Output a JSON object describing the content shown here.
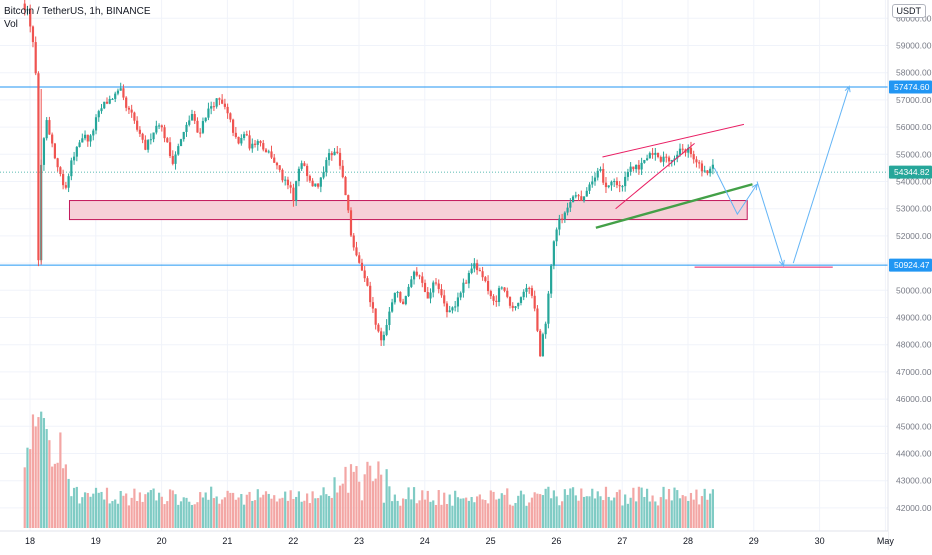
{
  "header": {
    "title": "Bitcoin / TetherUS, 1h, BINANCE",
    "volume_label": "Vol"
  },
  "currency_badge": "USDT",
  "colors": {
    "up": "#26a69a",
    "down": "#ef5350",
    "up_volume": "#7fcbc4",
    "down_volume": "#f3a6a4",
    "level_line": "#2196f3",
    "zone_fill": "#f6d0d8",
    "zone_border": "#c2185b",
    "wedge_line": "#e91e63",
    "trend_line": "#43a047",
    "arrow": "#64b5f6",
    "axis_text": "#787b86"
  },
  "chart_data": {
    "type": "candlestick",
    "title": "Bitcoin / TetherUS, 1h, BINANCE",
    "x_axis": {
      "tick_labels": [
        "18",
        "19",
        "20",
        "21",
        "22",
        "23",
        "24",
        "25",
        "26",
        "27",
        "28",
        "29",
        "30",
        "May"
      ]
    },
    "y_axis": {
      "range": [
        41800,
        60600
      ],
      "tick_values": [
        60000,
        59000,
        58000,
        57000,
        56000,
        55000,
        54000,
        53000,
        52000,
        51000,
        50000,
        49000,
        48000,
        47000,
        46000,
        45000,
        44000,
        43000,
        42000
      ],
      "tick_labels": [
        "60000.00",
        "59000.00",
        "58000.00",
        "57000.00",
        "56000.00",
        "55000.00",
        "54000.00",
        "53000.00",
        "52000.00",
        "51000.00",
        "50000.00",
        "49000.00",
        "48000.00",
        "47000.00",
        "46000.00",
        "45000.00",
        "44000.00",
        "43000.00",
        "42000.00"
      ]
    },
    "price_labels": [
      {
        "value": 57474.6,
        "text": "57474.60",
        "kind": "level"
      },
      {
        "value": 54344.82,
        "text": "54344.82",
        "kind": "last"
      },
      {
        "value": 50924.47,
        "text": "50924.47",
        "kind": "level"
      }
    ],
    "horizontal_levels": [
      57474.6,
      50924.47
    ],
    "last_price": 54344.82,
    "support_zone": {
      "from_day": 18.6,
      "to_day": 28.9,
      "low": 52600,
      "high": 53300
    },
    "price_path": [
      [
        17.9,
        60600
      ],
      [
        18.0,
        60300
      ],
      [
        18.05,
        59700
      ],
      [
        18.1,
        59000
      ],
      [
        18.14,
        57400
      ],
      [
        18.17,
        51000
      ],
      [
        18.22,
        55200
      ],
      [
        18.3,
        56300
      ],
      [
        18.4,
        55000
      ],
      [
        18.5,
        54200
      ],
      [
        18.58,
        53600
      ],
      [
        18.65,
        54600
      ],
      [
        18.75,
        55300
      ],
      [
        18.85,
        55700
      ],
      [
        18.95,
        55500
      ],
      [
        19.05,
        56300
      ],
      [
        19.15,
        56800
      ],
      [
        19.25,
        57000
      ],
      [
        19.35,
        57200
      ],
      [
        19.42,
        57300
      ],
      [
        19.5,
        56700
      ],
      [
        19.6,
        56400
      ],
      [
        19.7,
        55700
      ],
      [
        19.8,
        55200
      ],
      [
        19.9,
        55800
      ],
      [
        20.0,
        56200
      ],
      [
        20.1,
        55600
      ],
      [
        20.2,
        54700
      ],
      [
        20.3,
        55300
      ],
      [
        20.4,
        55900
      ],
      [
        20.5,
        56500
      ],
      [
        20.6,
        55700
      ],
      [
        20.7,
        56400
      ],
      [
        20.8,
        56800
      ],
      [
        20.9,
        57000
      ],
      [
        21.0,
        56700
      ],
      [
        21.1,
        56100
      ],
      [
        21.2,
        55300
      ],
      [
        21.3,
        55800
      ],
      [
        21.4,
        55200
      ],
      [
        21.5,
        55600
      ],
      [
        21.6,
        55200
      ],
      [
        21.7,
        55000
      ],
      [
        21.8,
        54500
      ],
      [
        21.9,
        54000
      ],
      [
        22.0,
        53700
      ],
      [
        22.05,
        53200
      ],
      [
        22.1,
        54300
      ],
      [
        22.2,
        54700
      ],
      [
        22.3,
        54000
      ],
      [
        22.4,
        53800
      ],
      [
        22.5,
        54400
      ],
      [
        22.6,
        55000
      ],
      [
        22.7,
        55200
      ],
      [
        22.75,
        54700
      ],
      [
        22.8,
        54000
      ],
      [
        22.85,
        53400
      ],
      [
        22.9,
        52400
      ],
      [
        22.95,
        51700
      ],
      [
        23.0,
        51400
      ],
      [
        23.1,
        50600
      ],
      [
        23.2,
        49800
      ],
      [
        23.3,
        48700
      ],
      [
        23.4,
        48000
      ],
      [
        23.5,
        49200
      ],
      [
        23.6,
        50000
      ],
      [
        23.7,
        49400
      ],
      [
        23.8,
        50200
      ],
      [
        23.9,
        50700
      ],
      [
        24.0,
        50300
      ],
      [
        24.1,
        49700
      ],
      [
        24.2,
        50400
      ],
      [
        24.3,
        49900
      ],
      [
        24.4,
        49100
      ],
      [
        24.5,
        49400
      ],
      [
        24.6,
        50100
      ],
      [
        24.7,
        50500
      ],
      [
        24.8,
        50900
      ],
      [
        24.9,
        50600
      ],
      [
        25.0,
        50000
      ],
      [
        25.1,
        49500
      ],
      [
        25.2,
        50200
      ],
      [
        25.3,
        49600
      ],
      [
        25.4,
        49200
      ],
      [
        25.5,
        49800
      ],
      [
        25.6,
        50200
      ],
      [
        25.7,
        49700
      ],
      [
        25.75,
        48500
      ],
      [
        25.8,
        47600
      ],
      [
        25.85,
        48500
      ],
      [
        25.9,
        49200
      ],
      [
        25.95,
        50600
      ],
      [
        26.0,
        51800
      ],
      [
        26.05,
        52300
      ],
      [
        26.1,
        52600
      ],
      [
        26.2,
        53000
      ],
      [
        26.3,
        53600
      ],
      [
        26.4,
        53300
      ],
      [
        26.5,
        53700
      ],
      [
        26.6,
        54000
      ],
      [
        26.7,
        54400
      ],
      [
        26.8,
        53800
      ],
      [
        26.9,
        54100
      ],
      [
        27.0,
        53700
      ],
      [
        27.1,
        54100
      ],
      [
        27.2,
        54600
      ],
      [
        27.3,
        54400
      ],
      [
        27.4,
        54900
      ],
      [
        27.5,
        55100
      ],
      [
        27.6,
        54800
      ],
      [
        27.7,
        55000
      ],
      [
        27.8,
        54700
      ],
      [
        27.9,
        55200
      ],
      [
        28.0,
        55000
      ],
      [
        28.05,
        55400
      ],
      [
        28.1,
        54800
      ],
      [
        28.2,
        54600
      ],
      [
        28.3,
        54300
      ],
      [
        28.4,
        54500
      ]
    ],
    "volume_range": [
      0,
      46500
    ],
    "volume_peaks": [
      {
        "day": 18.1,
        "value": 46000
      },
      {
        "day": 22.8,
        "value": 40200
      },
      {
        "day": 23.2,
        "value": 39000
      },
      {
        "day": 25.75,
        "value": 36500
      },
      {
        "day": 26.0,
        "value": 30500
      },
      {
        "day": 28.1,
        "value": 30300
      }
    ],
    "annotations": {
      "rising_wedge": {
        "upper": [
          [
            26.7,
            54900
          ],
          [
            28.85,
            56100
          ]
        ],
        "lower": [
          [
            26.9,
            53000
          ],
          [
            28.1,
            55400
          ]
        ]
      },
      "trend_line": [
        [
          26.6,
          52300
        ],
        [
          28.98,
          53900
        ]
      ],
      "projection_arrows": [
        [
          [
            28.4,
            54500
          ],
          [
            28.75,
            52800
          ],
          [
            29.05,
            53900
          ]
        ],
        [
          [
            29.05,
            54000
          ],
          [
            29.45,
            50900
          ]
        ],
        [
          [
            29.6,
            51000
          ],
          [
            30.45,
            57500
          ]
        ]
      ],
      "target_line": {
        "from_day": 28.1,
        "to_day": 30.2,
        "value": 50924.47
      }
    }
  }
}
